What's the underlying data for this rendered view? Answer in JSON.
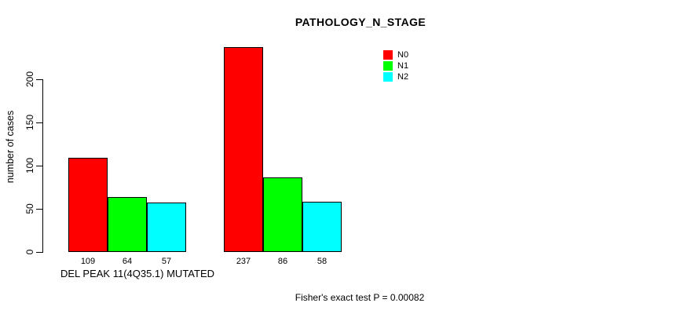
{
  "figure": {
    "background": "#FFFFFF"
  },
  "chart_data": {
    "type": "bar",
    "title": "PATHOLOGY_N_STAGE",
    "ylabel": "number of cases",
    "xlabel": "DEL PEAK 11(4Q35.1) MUTATED",
    "ylim": [
      0,
      240
    ],
    "y_ticks": [
      0,
      50,
      100,
      150,
      200
    ],
    "grid": false,
    "legend_position": "top-right",
    "categories": [
      "DEL PEAK 11(4Q35.1) MUTATED",
      ""
    ],
    "series": [
      {
        "name": "N0",
        "color": "#FF0000",
        "values": [
          109,
          237
        ]
      },
      {
        "name": "N1",
        "color": "#00FF00",
        "values": [
          64,
          86
        ]
      },
      {
        "name": "N2",
        "color": "#00FFFF",
        "values": [
          57,
          58
        ]
      }
    ],
    "bar_value_labels": true,
    "annotation": "Fisher's exact test P = 0.00082",
    "axis_color": "#000000",
    "text_color": "#000000"
  }
}
